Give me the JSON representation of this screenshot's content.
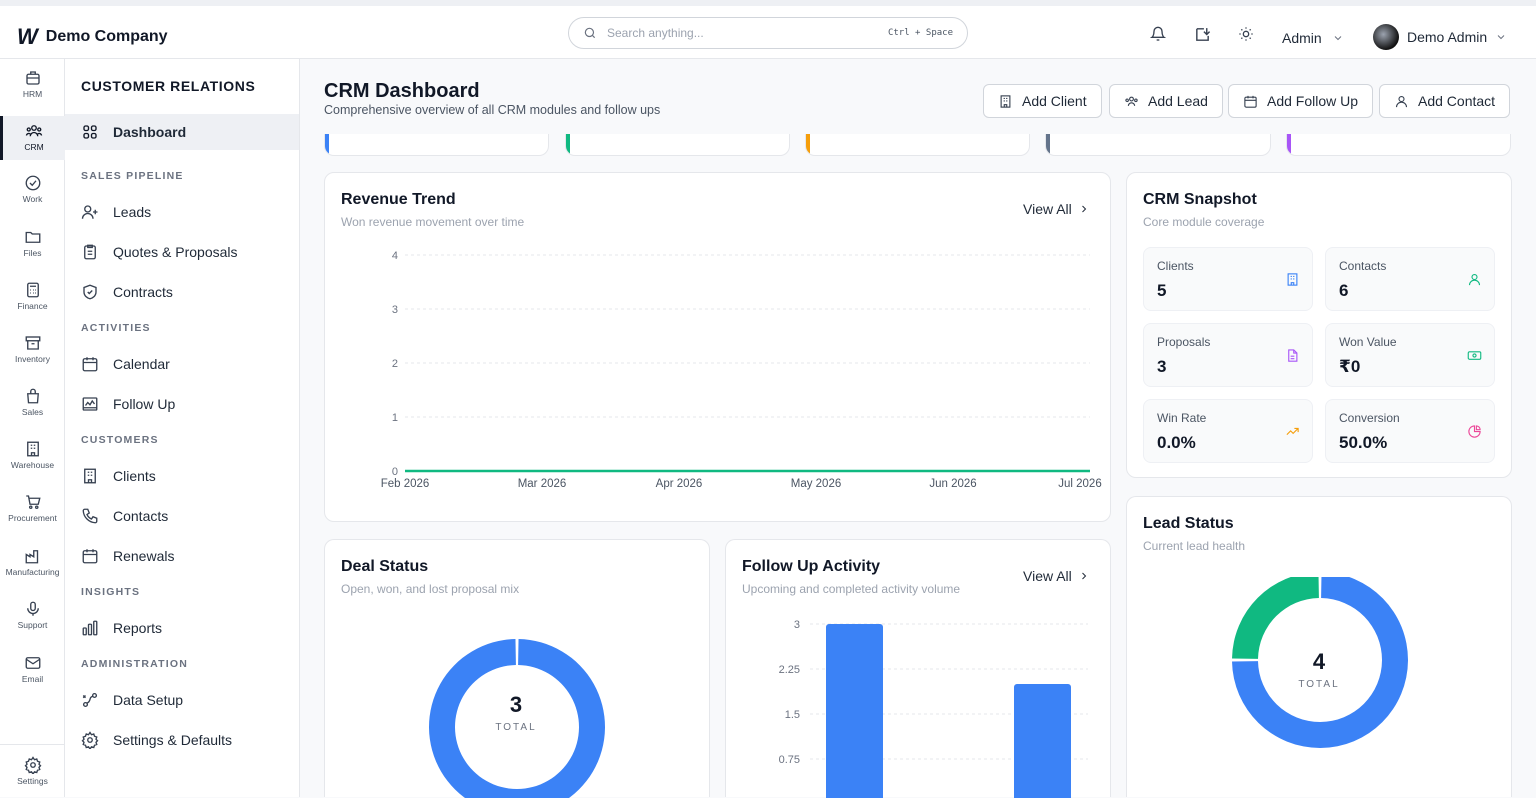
{
  "brand": {
    "logo": "W",
    "name": "Demo Company"
  },
  "search": {
    "placeholder": "Search anything...",
    "shortcut": "Ctrl + Space"
  },
  "header": {
    "role": "Admin",
    "user_name": "Demo Admin"
  },
  "rail": {
    "items": [
      {
        "label": "HRM",
        "icon": "briefcase-icon"
      },
      {
        "label": "CRM",
        "icon": "users-icon",
        "active": true
      },
      {
        "label": "Work",
        "icon": "check-circle-icon"
      },
      {
        "label": "Files",
        "icon": "folder-icon"
      },
      {
        "label": "Finance",
        "icon": "calculator-icon"
      },
      {
        "label": "Inventory",
        "icon": "archive-icon"
      },
      {
        "label": "Sales",
        "icon": "shopping-bag-icon"
      },
      {
        "label": "Warehouse",
        "icon": "building-icon"
      },
      {
        "label": "Procurement",
        "icon": "cart-icon"
      },
      {
        "label": "Manufacturing",
        "icon": "factory-icon"
      },
      {
        "label": "Support",
        "icon": "microphone-icon"
      },
      {
        "label": "Email",
        "icon": "mail-icon"
      }
    ],
    "settings": "Settings"
  },
  "sidebar": {
    "title": "CUSTOMER RELATIONS",
    "dashboard": "Dashboard",
    "sections": {
      "sales_pipeline": "SALES PIPELINE",
      "activities": "ACTIVITIES",
      "customers": "CUSTOMERS",
      "insights": "INSIGHTS",
      "administration": "ADMINISTRATION"
    },
    "items": {
      "leads": "Leads",
      "quotes": "Quotes & Proposals",
      "contracts": "Contracts",
      "calendar": "Calendar",
      "follow_up": "Follow Up",
      "clients": "Clients",
      "contacts": "Contacts",
      "renewals": "Renewals",
      "reports": "Reports",
      "data_setup": "Data Setup",
      "settings": "Settings & Defaults"
    }
  },
  "page": {
    "title": "CRM Dashboard",
    "subtitle": "Comprehensive overview of all CRM modules and follow ups",
    "actions": {
      "add_client": "Add Client",
      "add_lead": "Add Lead",
      "add_follow_up": "Add Follow Up",
      "add_contact": "Add Contact"
    }
  },
  "stat_accents": [
    "#3b82f6",
    "#10b981",
    "#f59e0b",
    "#64748b",
    "#a855f7"
  ],
  "revenue": {
    "title": "Revenue Trend",
    "subtitle": "Won revenue movement over time",
    "view_all": "View All"
  },
  "snapshot": {
    "title": "CRM Snapshot",
    "subtitle": "Core module coverage",
    "cards": {
      "clients": {
        "label": "Clients",
        "value": "5"
      },
      "contacts": {
        "label": "Contacts",
        "value": "6"
      },
      "proposals": {
        "label": "Proposals",
        "value": "3"
      },
      "won_value": {
        "label": "Won Value",
        "value": "₹0"
      },
      "win_rate": {
        "label": "Win Rate",
        "value": "0.0%"
      },
      "conversion": {
        "label": "Conversion",
        "value": "50.0%"
      }
    }
  },
  "deal_status": {
    "title": "Deal Status",
    "subtitle": "Open, won, and lost proposal mix",
    "total": "3",
    "total_label": "TOTAL"
  },
  "follow_up": {
    "title": "Follow Up Activity",
    "subtitle": "Upcoming and completed activity volume",
    "view_all": "View All"
  },
  "lead_status": {
    "title": "Lead Status",
    "subtitle": "Current lead health",
    "total": "4",
    "total_label": "TOTAL"
  },
  "chart_data": [
    {
      "type": "line",
      "x": [
        "Feb 2026",
        "Mar 2026",
        "Apr 2026",
        "May 2026",
        "Jun 2026",
        "Jul 2026"
      ],
      "series": [
        {
          "values": [
            0,
            0,
            0,
            0,
            0,
            0
          ],
          "color": "#10b981"
        }
      ],
      "yticks": [
        "0",
        "1",
        "2",
        "3",
        "4"
      ],
      "ylim": [
        0,
        4
      ],
      "grid": true
    },
    {
      "type": "pie",
      "values": [
        1
      ],
      "colors": [
        "#3b82f6"
      ]
    },
    {
      "type": "bar",
      "values": [
        3,
        2
      ],
      "colors": [
        "#3b82f6",
        "#3b82f6"
      ],
      "yticks": [
        "3",
        "2.25",
        "1.5",
        "0.75"
      ],
      "ylim": [
        0,
        3
      ],
      "grid": true
    },
    {
      "type": "pie",
      "values": [
        3,
        1
      ],
      "colors": [
        "#3b82f6",
        "#10b981"
      ]
    }
  ]
}
